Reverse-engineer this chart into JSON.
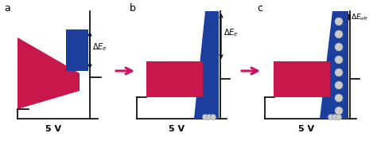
{
  "fig_width": 4.74,
  "fig_height": 1.77,
  "dpi": 100,
  "background": "#ffffff",
  "crimson": "#C8174A",
  "blue": "#1C3F9E",
  "arrow_color": "#D01060",
  "panel_labels": [
    "a",
    "b",
    "c"
  ]
}
